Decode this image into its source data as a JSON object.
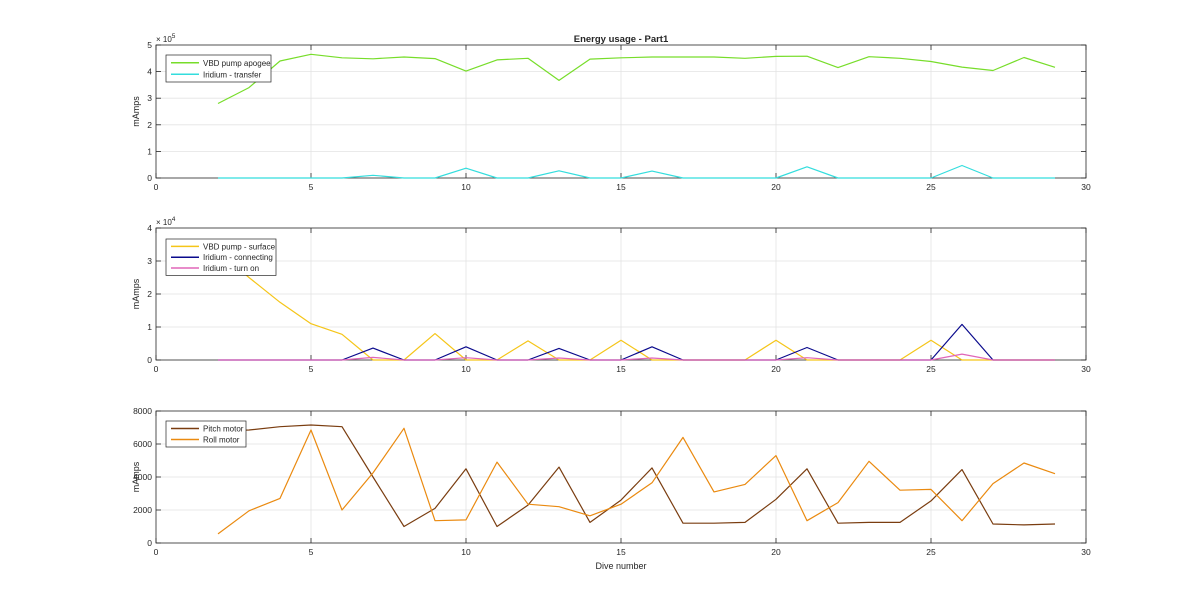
{
  "chart_data": [
    {
      "type": "line",
      "title": "Energy usage - Part1",
      "xlabel": "",
      "ylabel": "mAmps",
      "xlim": [
        0,
        30
      ],
      "ylim": [
        0,
        500000
      ],
      "xticks": [
        0,
        5,
        10,
        15,
        20,
        25,
        30
      ],
      "yticks": [
        0,
        100000,
        200000,
        300000,
        400000,
        500000
      ],
      "ytick_labels": [
        "0",
        "1",
        "2",
        "3",
        "4",
        "5"
      ],
      "y_exponent_label": "× 10",
      "y_exponent_power": "5",
      "grid": true,
      "legend": "top-left",
      "x": [
        2,
        3,
        4,
        5,
        6,
        7,
        8,
        9,
        10,
        11,
        12,
        13,
        14,
        15,
        16,
        17,
        18,
        19,
        20,
        21,
        22,
        23,
        24,
        25,
        26,
        27,
        28,
        29
      ],
      "series": [
        {
          "name": "VBD pump apogee",
          "color": "#77dd2a",
          "values": [
            280000,
            340000,
            440000,
            465000,
            452000,
            448000,
            455000,
            449000,
            402000,
            444000,
            450000,
            367000,
            447000,
            452000,
            455000,
            455000,
            455000,
            450000,
            457000,
            458000,
            415000,
            456000,
            450000,
            438000,
            417000,
            404000,
            453000,
            416000
          ]
        },
        {
          "name": "Iridium - transfer",
          "color": "#33dddd",
          "values": [
            0,
            0,
            0,
            0,
            0,
            10000,
            0,
            0,
            37000,
            0,
            0,
            27000,
            0,
            0,
            26000,
            0,
            0,
            0,
            0,
            42000,
            0,
            0,
            0,
            0,
            47000,
            0,
            0,
            0
          ]
        }
      ]
    },
    {
      "type": "line",
      "title": "",
      "xlabel": "",
      "ylabel": "mAmps",
      "xlim": [
        0,
        30
      ],
      "ylim": [
        0,
        40000
      ],
      "xticks": [
        0,
        5,
        10,
        15,
        20,
        25,
        30
      ],
      "yticks": [
        0,
        10000,
        20000,
        30000,
        40000
      ],
      "ytick_labels": [
        "0",
        "1",
        "2",
        "3",
        "4"
      ],
      "y_exponent_label": "× 10",
      "y_exponent_power": "4",
      "grid": true,
      "legend": "top-left",
      "x": [
        2,
        3,
        4,
        5,
        6,
        7,
        8,
        9,
        10,
        11,
        12,
        13,
        14,
        15,
        16,
        17,
        18,
        19,
        20,
        21,
        22,
        23,
        24,
        25,
        26,
        27,
        28,
        29
      ],
      "series": [
        {
          "name": "VBD pump - surface",
          "color": "#f5c518",
          "values": [
            33000,
            25000,
            17500,
            11000,
            7800,
            0,
            0,
            8000,
            0,
            0,
            5800,
            0,
            0,
            6000,
            0,
            0,
            0,
            0,
            6000,
            0,
            0,
            0,
            0,
            6000,
            0,
            0,
            0,
            0
          ]
        },
        {
          "name": "Iridium - connecting",
          "color": "#0a0a8c",
          "values": [
            0,
            0,
            0,
            0,
            0,
            3600,
            0,
            0,
            4000,
            0,
            0,
            3500,
            0,
            0,
            4000,
            0,
            0,
            0,
            0,
            3800,
            0,
            0,
            0,
            0,
            10800,
            0,
            0,
            0
          ]
        },
        {
          "name": "Iridium - turn on",
          "color": "#e066b8",
          "values": [
            0,
            0,
            0,
            0,
            0,
            800,
            0,
            0,
            700,
            0,
            0,
            600,
            0,
            0,
            600,
            0,
            0,
            0,
            0,
            700,
            0,
            0,
            0,
            0,
            1800,
            0,
            0,
            0
          ]
        }
      ]
    },
    {
      "type": "line",
      "title": "",
      "xlabel": "Dive number",
      "ylabel": "mAmps",
      "xlim": [
        0,
        30
      ],
      "ylim": [
        0,
        8000
      ],
      "xticks": [
        0,
        5,
        10,
        15,
        20,
        25,
        30
      ],
      "yticks": [
        0,
        2000,
        4000,
        6000,
        8000
      ],
      "ytick_labels": [
        "0",
        "2000",
        "4000",
        "6000",
        "8000"
      ],
      "grid": true,
      "legend": "top-left",
      "x": [
        2,
        3,
        4,
        5,
        6,
        7,
        8,
        9,
        10,
        11,
        12,
        13,
        14,
        15,
        16,
        17,
        18,
        19,
        20,
        21,
        22,
        23,
        24,
        25,
        26,
        27,
        28,
        29
      ],
      "series": [
        {
          "name": "Pitch motor",
          "color": "#7a3d10",
          "values": [
            6800,
            6850,
            7050,
            7150,
            7050,
            4000,
            1000,
            2100,
            4500,
            1000,
            2300,
            4600,
            1250,
            2600,
            4550,
            1200,
            1200,
            1250,
            2650,
            4500,
            1200,
            1250,
            1250,
            2550,
            4450,
            1150,
            1100,
            1150
          ]
        },
        {
          "name": "Roll motor",
          "color": "#ea8a10",
          "values": [
            550,
            1950,
            2700,
            6850,
            2000,
            4250,
            6950,
            1350,
            1400,
            4900,
            2350,
            2200,
            1650,
            2350,
            3650,
            6400,
            3100,
            3550,
            5300,
            1350,
            2450,
            4950,
            3200,
            3250,
            1350,
            3600,
            4850,
            4200
          ]
        }
      ]
    }
  ]
}
